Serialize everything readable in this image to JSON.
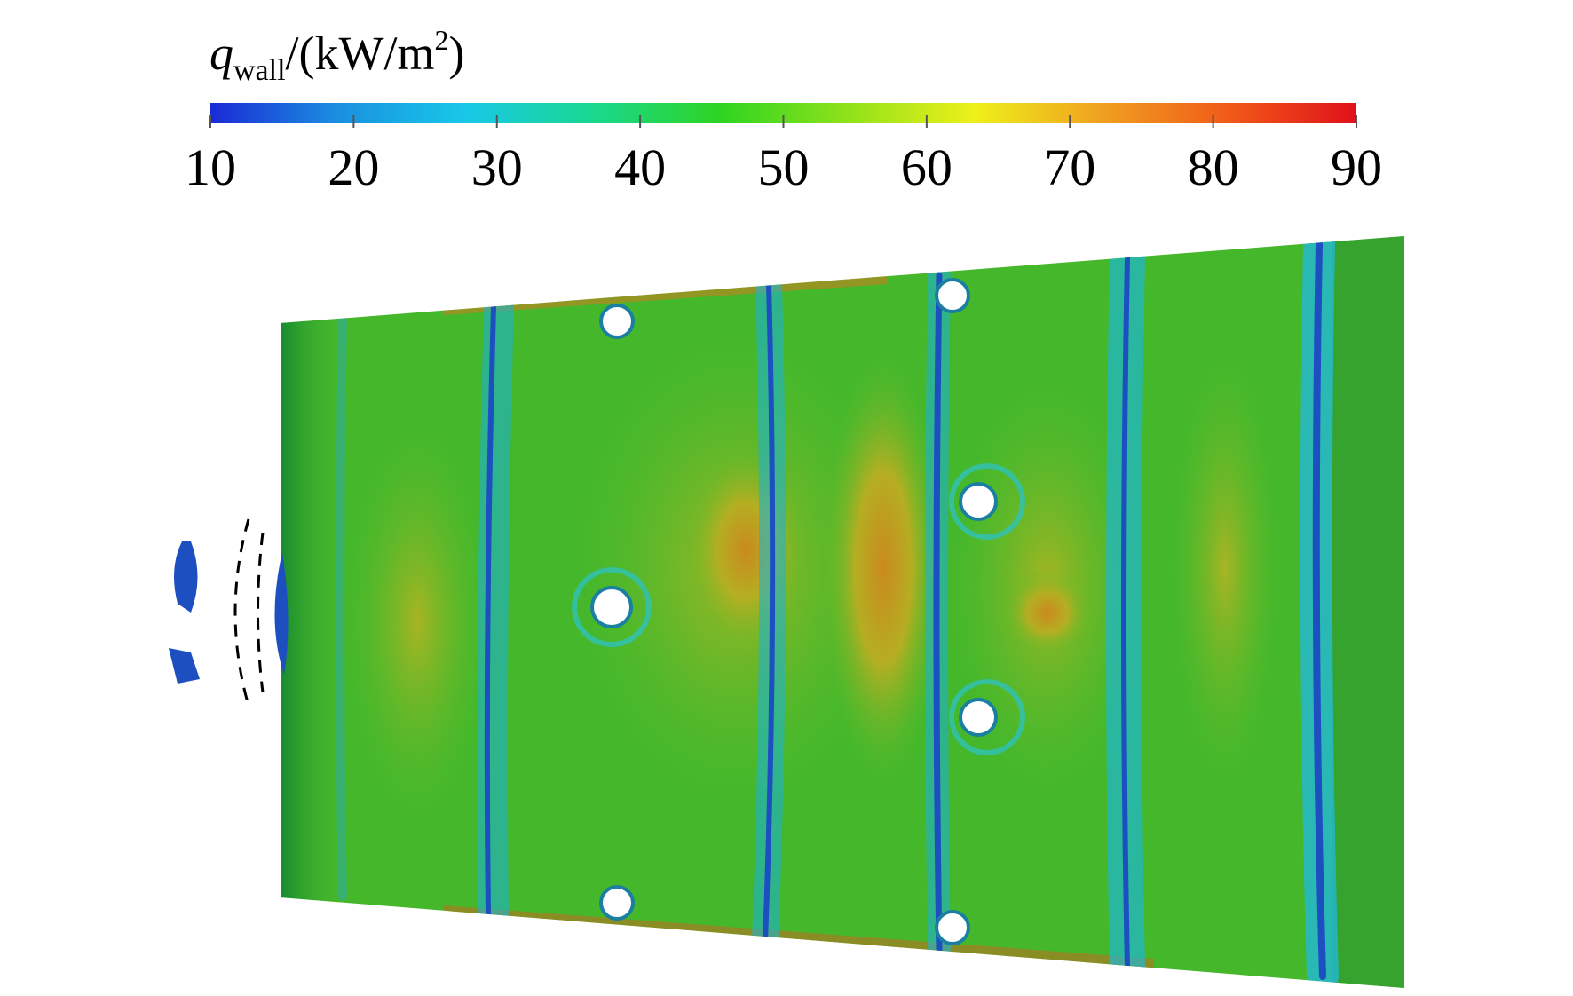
{
  "chart_data": {
    "type": "contour",
    "colorbar_label": {
      "symbol": "q",
      "subscript": "wall",
      "unit": "/(kW/m",
      "superscript": "2",
      "close": ")"
    },
    "colorbar_lim": [
      10,
      90
    ],
    "colorbar_ticks": [
      10,
      20,
      30,
      40,
      50,
      60,
      70,
      80,
      90
    ],
    "colormap": [
      "#1b2ad6",
      "#1a8fe0",
      "#18c8e8",
      "#18d890",
      "#2ed422",
      "#8fe21a",
      "#eef01a",
      "#f0a020",
      "#f05a18",
      "#e0101a"
    ]
  }
}
